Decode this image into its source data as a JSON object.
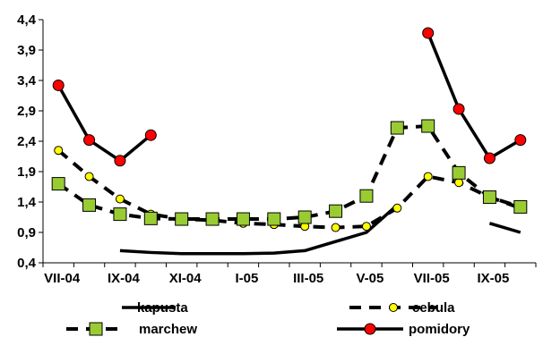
{
  "chart_data": {
    "type": "line",
    "y_ticks": [
      "0,4",
      "0,9",
      "1,4",
      "1,9",
      "2,4",
      "2,9",
      "3,4",
      "3,9",
      "4,4"
    ],
    "ylim": [
      0.4,
      4.4
    ],
    "x_tick_labels": [
      "VII-04",
      "IX-04",
      "XI-04",
      "I-05",
      "III-05",
      "V-05",
      "VII-05",
      "IX-05"
    ],
    "x": [
      "VII-04",
      "VIII-04",
      "IX-04",
      "X-04",
      "XI-04",
      "XII-04",
      "I-05",
      "II-05",
      "III-05",
      "IV-05",
      "V-05",
      "VI-05",
      "VII-05",
      "VIII-05",
      "IX-05",
      "X-05"
    ],
    "grid": false,
    "legend_position": "bottom",
    "series": [
      {
        "name": "kapusta",
        "color": "#000000",
        "line": "solid",
        "marker": "none",
        "values": [
          null,
          null,
          0.6,
          0.57,
          0.55,
          0.55,
          0.55,
          0.56,
          0.6,
          0.75,
          0.9,
          1.35,
          null,
          null,
          1.05,
          0.9
        ]
      },
      {
        "name": "cebula",
        "color": "#000000",
        "line": "dashed",
        "marker": "circle",
        "marker_color": "#ffff00",
        "values": [
          2.25,
          1.82,
          1.45,
          1.2,
          1.12,
          1.1,
          1.05,
          1.03,
          1.0,
          0.98,
          1.0,
          1.3,
          1.82,
          1.72,
          1.48,
          1.3
        ]
      },
      {
        "name": "marchew",
        "color": "#000000",
        "line": "dashed",
        "marker": "square",
        "marker_color": "#99cc33",
        "values": [
          1.7,
          1.35,
          1.2,
          1.13,
          1.12,
          1.12,
          1.12,
          1.12,
          1.15,
          1.25,
          1.5,
          2.62,
          2.65,
          1.88,
          1.48,
          1.32
        ]
      },
      {
        "name": "pomidory",
        "color": "#000000",
        "line": "solid",
        "marker": "circle",
        "marker_color": "#ff0000",
        "values": [
          3.32,
          2.42,
          2.08,
          2.5,
          null,
          null,
          null,
          null,
          null,
          null,
          null,
          null,
          4.18,
          2.93,
          2.12,
          2.42
        ]
      }
    ]
  }
}
